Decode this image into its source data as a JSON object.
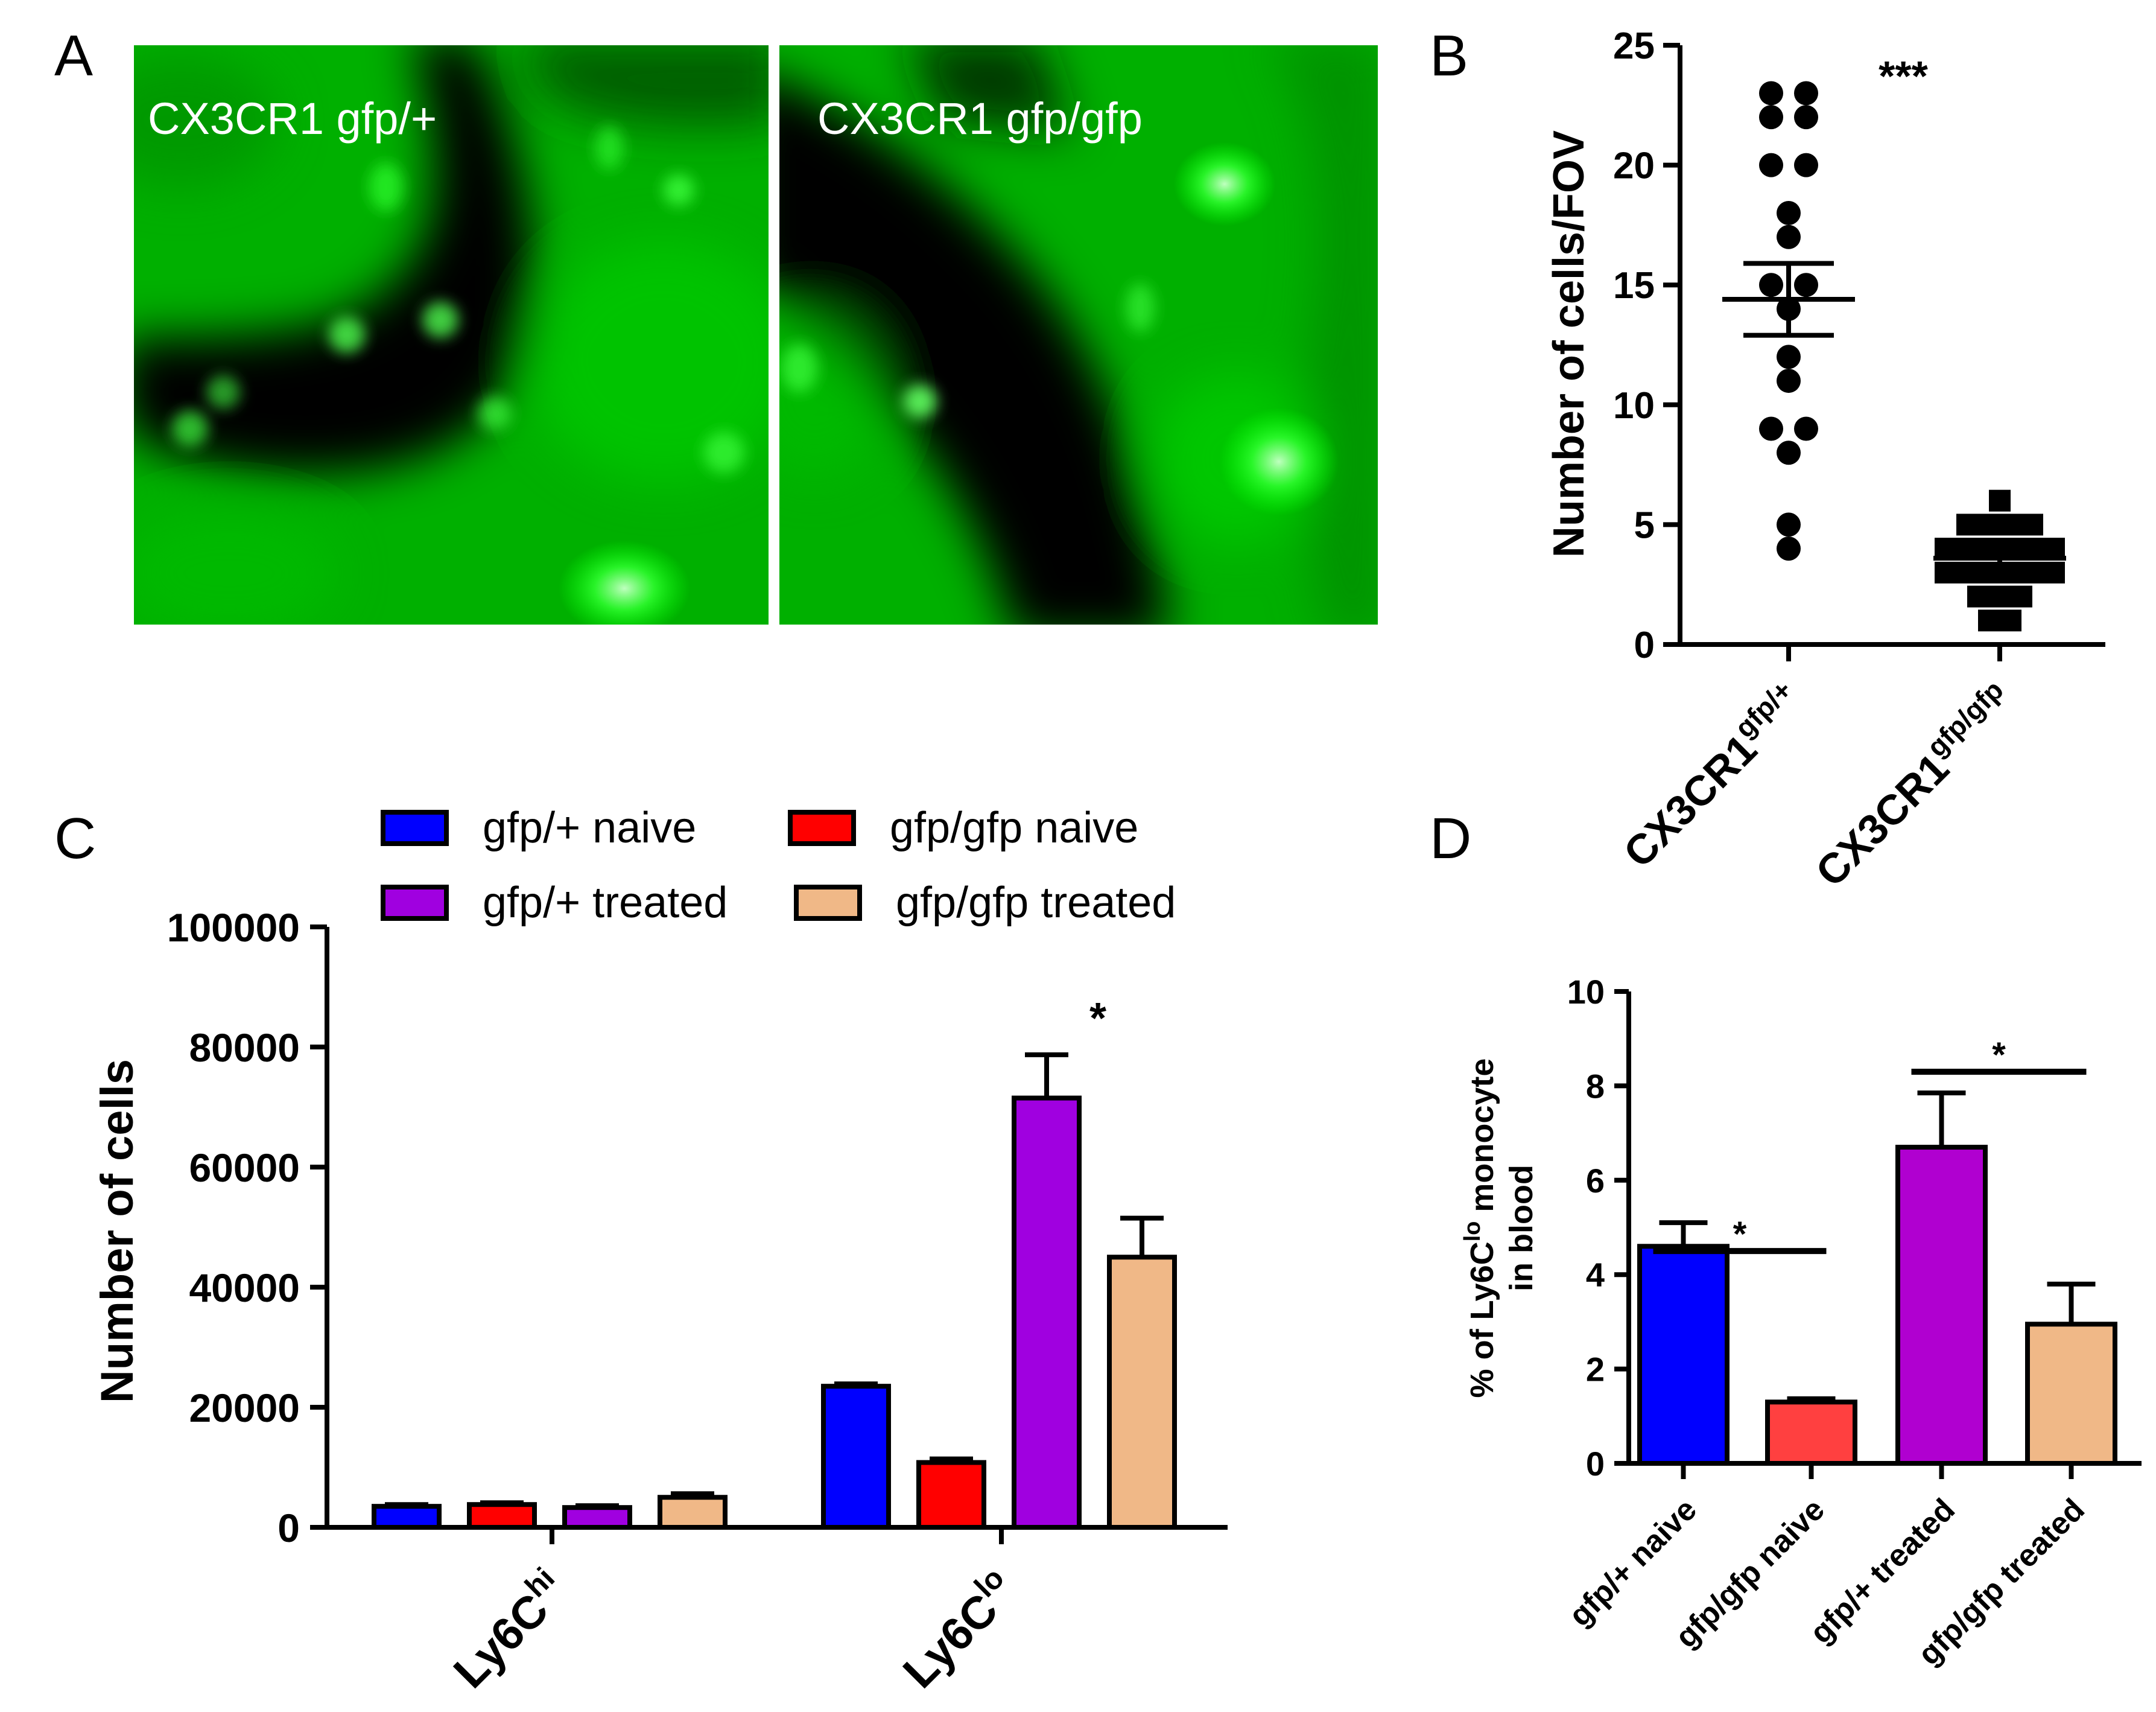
{
  "panels": {
    "a": {
      "letter": "A",
      "left_label": "CX3CR1 gfp/+",
      "right_label": "CX3CR1 gfp/gfp"
    },
    "b": {
      "letter": "B"
    },
    "c": {
      "letter": "C"
    },
    "d": {
      "letter": "D"
    }
  },
  "colors": {
    "gfp_plus_naive": "#0000ff",
    "gfp_gfp_naive": "#ff0000",
    "gfp_plus_treated": "#a000e0",
    "gfp_gfp_treated": "#f0b887",
    "d_gfp_gfp_naive": "#ff4040",
    "d_gfp_plus_treated": "#b000d0",
    "microscopy_green": "#00c000"
  },
  "chart_data": [
    {
      "panel": "B",
      "type": "scatter",
      "ylabel": "Number of cells/FOV",
      "ylim": [
        0,
        25
      ],
      "yticks": [
        "0",
        "5",
        "10",
        "15",
        "20",
        "25"
      ],
      "categories": [
        {
          "base": "CX3CR1",
          "sup": "gfp/+"
        },
        {
          "base": "CX3CR1",
          "sup": "gfp/gfp"
        }
      ],
      "significance": "***",
      "groups": [
        {
          "marker": "circle",
          "mean": 14.4,
          "sem": 1.5,
          "points": [
            23,
            23,
            22,
            22,
            20,
            20,
            18,
            17,
            15,
            15,
            14,
            12,
            11,
            9,
            9,
            8,
            5,
            4
          ]
        },
        {
          "marker": "square",
          "mean": 3.6,
          "sem": 0.3,
          "points": [
            6,
            5,
            5,
            5,
            5,
            4,
            4,
            4,
            4,
            4,
            4,
            3,
            3,
            3,
            3,
            3,
            3,
            2,
            2,
            2,
            1,
            1
          ]
        }
      ]
    },
    {
      "panel": "C",
      "type": "bar",
      "ylabel": "Number of cells",
      "ylim": [
        0,
        100000
      ],
      "yticks": [
        "0",
        "20000",
        "40000",
        "60000",
        "80000",
        "100000"
      ],
      "categories": [
        {
          "base": "Ly6C",
          "sup": "hi"
        },
        {
          "base": "Ly6C",
          "sup": "lo"
        }
      ],
      "series": [
        {
          "name": "gfp/+ naive",
          "values": [
            3500,
            23500
          ],
          "errors": [
            300,
            400
          ]
        },
        {
          "name": "gfp/gfp naive",
          "values": [
            3800,
            10800
          ],
          "errors": [
            300,
            600
          ]
        },
        {
          "name": "gfp/+ treated",
          "values": [
            3300,
            71500
          ],
          "errors": [
            300,
            7200
          ]
        },
        {
          "name": "gfp/gfp treated",
          "values": [
            5000,
            45000
          ],
          "errors": [
            600,
            6500
          ]
        }
      ],
      "annotation": "*"
    },
    {
      "panel": "D",
      "type": "bar",
      "ylabel_prefix": "% of Ly6C",
      "ylabel_sup": "lo",
      "ylabel_suffix": " monocyte",
      "ylabel_line2": "in blood",
      "ylim": [
        0,
        10
      ],
      "yticks": [
        "0",
        "2",
        "4",
        "6",
        "8",
        "10"
      ],
      "categories": [
        "gfp/+ naive",
        "gfp/gfp naive",
        "gfp/+ treated",
        "gfp/gfp treated"
      ],
      "values": [
        4.6,
        1.3,
        6.7,
        2.95
      ],
      "errors": [
        0.5,
        0.07,
        1.15,
        0.85
      ],
      "significance": [
        "*",
        "*"
      ]
    }
  ]
}
